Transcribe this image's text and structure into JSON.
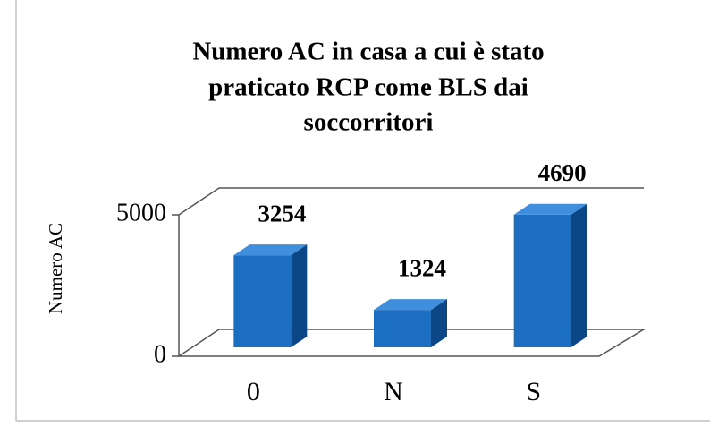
{
  "chart_data": {
    "type": "bar3d",
    "title": [
      "Numero AC in casa a cui è stato",
      "praticato RCP come BLS dai",
      "soccorritori"
    ],
    "y_label": "Numero AC",
    "categories": [
      "0",
      "N",
      "S"
    ],
    "values": [
      3254,
      1324,
      4690
    ],
    "color": "#1b6ec2",
    "ylim": [
      0,
      5000
    ],
    "yticks": [
      0,
      5000
    ],
    "grid": true
  }
}
